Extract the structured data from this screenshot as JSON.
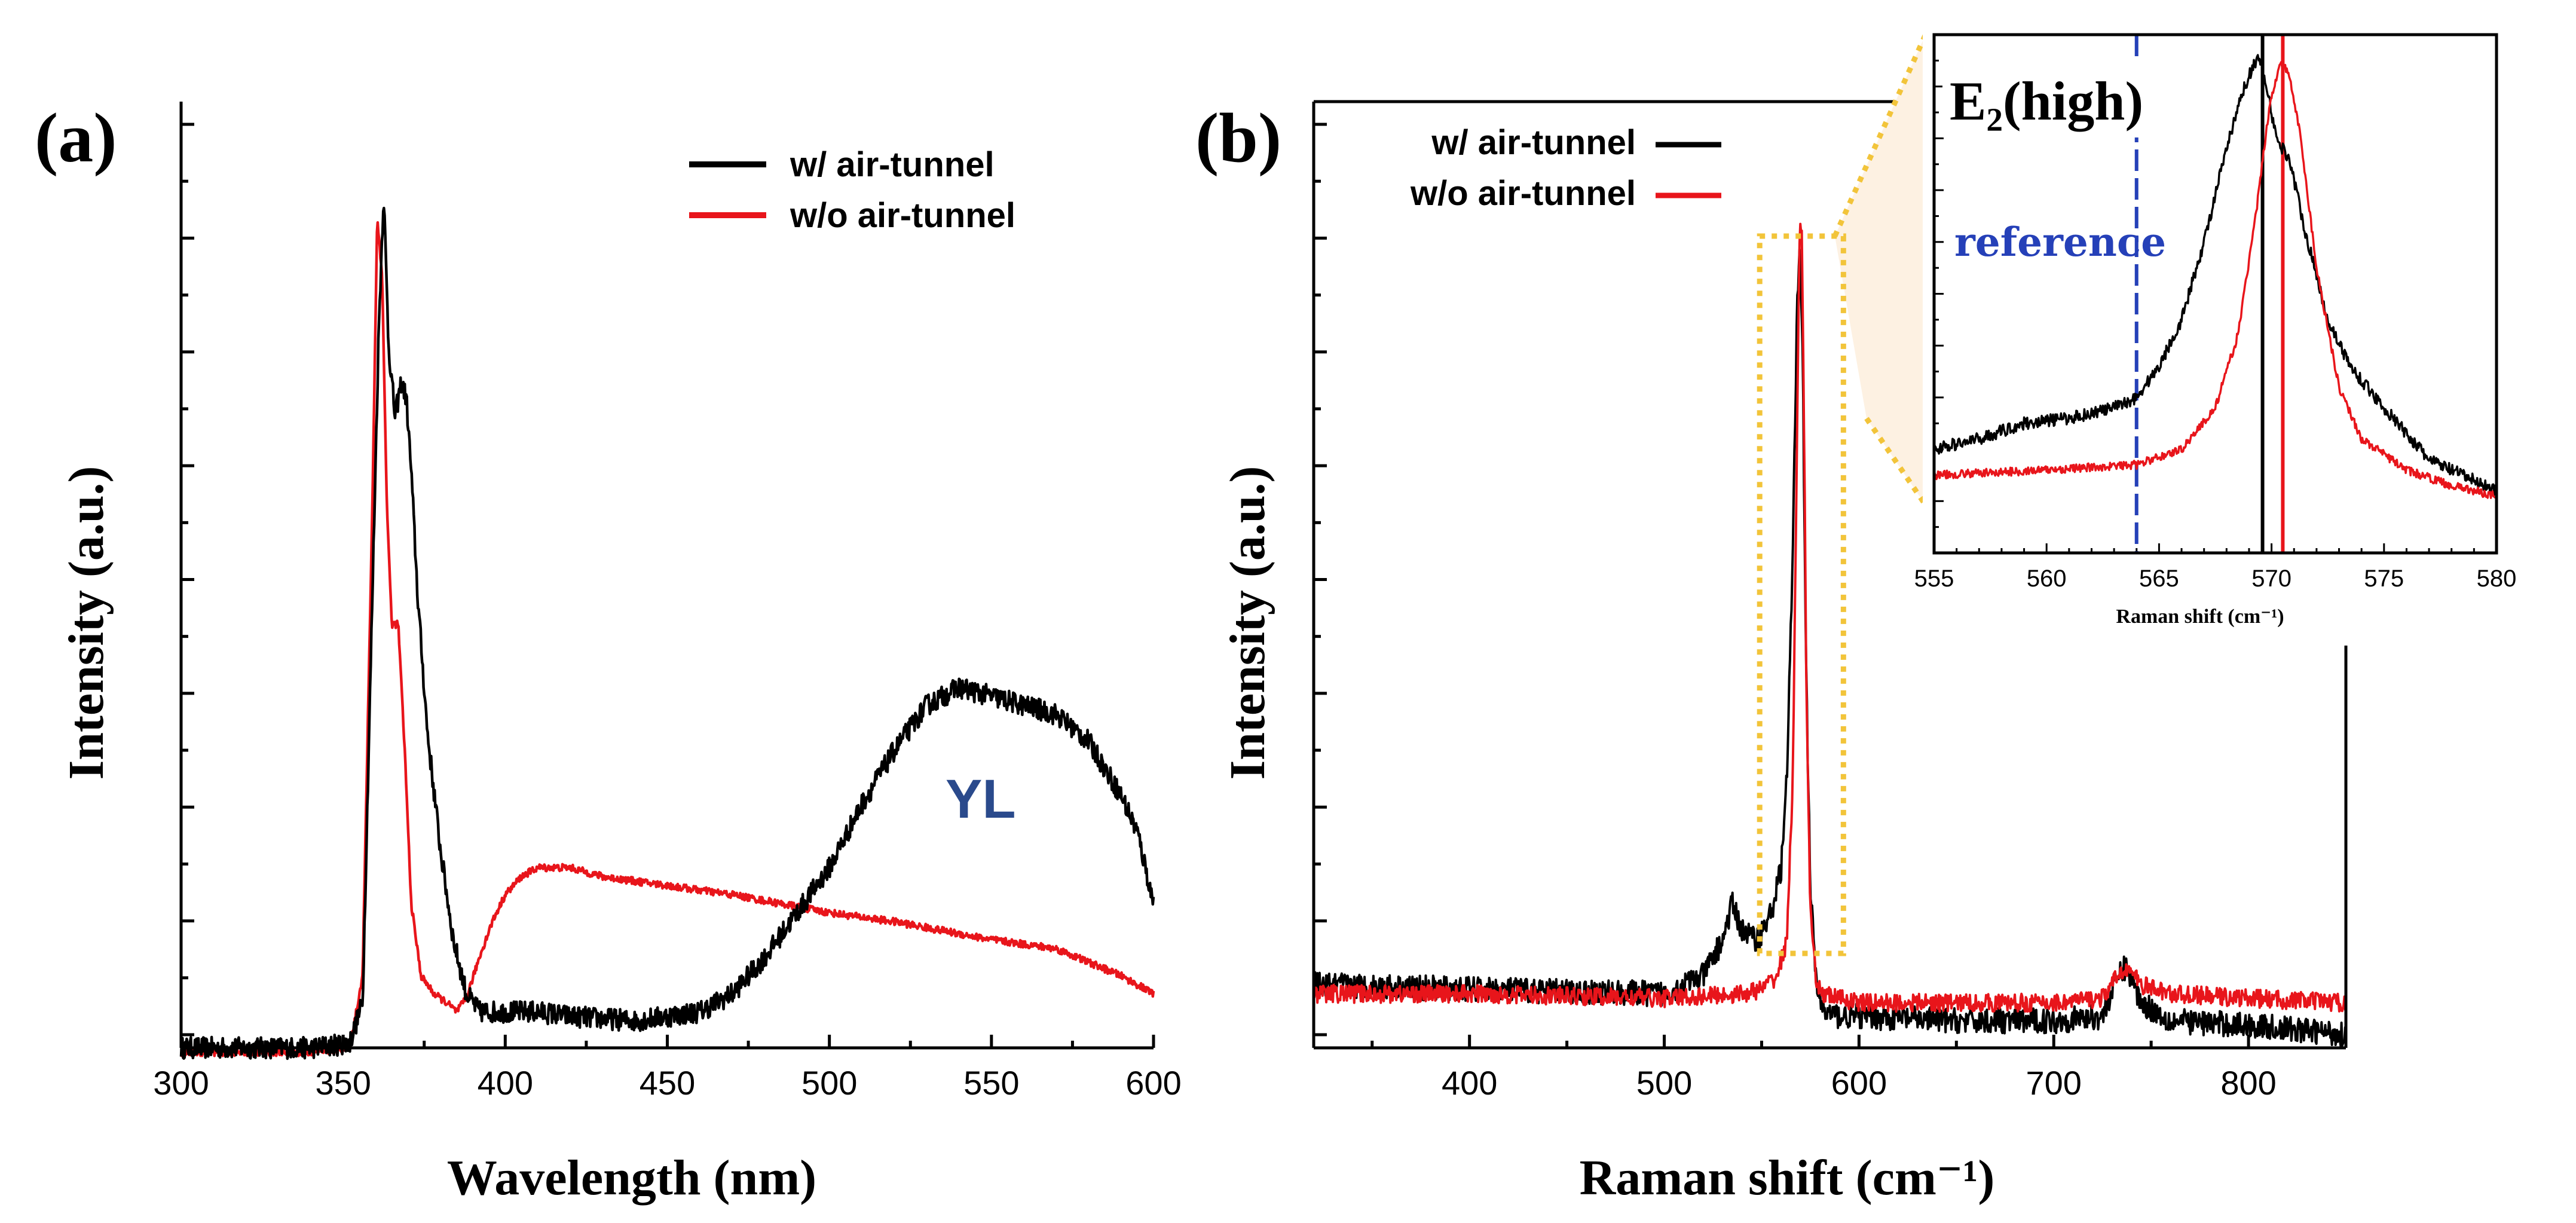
{
  "chart_data": [
    {
      "panel": "(a)",
      "type": "line",
      "xlabel": "Wavelength (nm)",
      "ylabel": "Intensity (a.u.)",
      "xlim": [
        300,
        600
      ],
      "ylim": [
        0,
        1.05
      ],
      "xticks": [
        300,
        350,
        400,
        450,
        500,
        550,
        600
      ],
      "xtick_labels": [
        "300",
        "350",
        "400",
        "450",
        "500",
        "550",
        "600"
      ],
      "yticks_count": 8,
      "legend": [
        "w/ air-tunnel",
        "w/o air-tunnel"
      ],
      "legend_position": "top-right",
      "annotation": "YL",
      "series": [
        {
          "name": "w/ air-tunnel",
          "color": "#000000",
          "x": [
            300,
            340,
            352,
            356,
            359,
            361,
            362.5,
            364,
            366,
            368,
            369.5,
            371,
            373,
            376,
            380,
            384,
            388,
            392,
            396,
            400,
            410,
            420,
            440,
            460,
            470,
            480,
            490,
            500,
            510,
            520,
            530,
            540,
            550,
            560,
            570,
            580,
            590,
            595,
            600
          ],
          "y": [
            0.0,
            0.0,
            0.005,
            0.05,
            0.5,
            0.8,
            0.95,
            0.78,
            0.7,
            0.74,
            0.72,
            0.64,
            0.5,
            0.35,
            0.22,
            0.12,
            0.06,
            0.04,
            0.04,
            0.04,
            0.04,
            0.035,
            0.03,
            0.04,
            0.06,
            0.1,
            0.15,
            0.2,
            0.27,
            0.33,
            0.38,
            0.4,
            0.39,
            0.38,
            0.37,
            0.34,
            0.28,
            0.24,
            0.16
          ],
          "noise": 0.012
        },
        {
          "name": "w/o air-tunnel",
          "color": "#e8151b",
          "x": [
            300,
            340,
            352,
            356,
            359,
            360.5,
            362,
            363.5,
            365,
            367,
            369,
            371,
            374,
            378,
            382,
            385,
            388,
            392,
            396,
            400,
            405,
            410,
            420,
            430,
            450,
            470,
            500,
            520,
            550,
            570,
            590,
            600
          ],
          "y": [
            -0.005,
            -0.005,
            0.0,
            0.08,
            0.6,
            0.92,
            0.86,
            0.6,
            0.47,
            0.47,
            0.33,
            0.16,
            0.08,
            0.06,
            0.05,
            0.04,
            0.055,
            0.1,
            0.14,
            0.17,
            0.19,
            0.2,
            0.2,
            0.19,
            0.18,
            0.17,
            0.15,
            0.14,
            0.12,
            0.11,
            0.08,
            0.06
          ],
          "noise": 0.004
        }
      ]
    },
    {
      "panel": "(b)",
      "type": "line",
      "xlabel": "Raman shift (cm⁻¹)",
      "ylabel": "Intensity (a.u.)",
      "xlim": [
        320,
        850
      ],
      "ylim": [
        0,
        1.05
      ],
      "xticks": [
        400,
        500,
        600,
        700,
        800
      ],
      "xtick_labels": [
        "400",
        "500",
        "600",
        "700",
        "800"
      ],
      "yticks_count": 8,
      "legend": [
        "w/ air-tunnel",
        "w/o air-tunnel"
      ],
      "legend_position": "top-left",
      "zoom_box_x_range": [
        549,
        592
      ],
      "series": [
        {
          "name": "w/ air-tunnel",
          "color": "#000000",
          "x": [
            320,
            400,
            500,
            520,
            530,
            535,
            540,
            548,
            555,
            560,
            563,
            566,
            568,
            569.5,
            571,
            573,
            575,
            578,
            582,
            590,
            600,
            650,
            700,
            725,
            733,
            737,
            745,
            760,
            800,
            850
          ],
          "y": [
            0.07,
            0.065,
            0.06,
            0.08,
            0.12,
            0.16,
            0.13,
            0.12,
            0.15,
            0.2,
            0.3,
            0.55,
            0.8,
            0.9,
            0.78,
            0.4,
            0.18,
            0.07,
            0.04,
            0.035,
            0.035,
            0.03,
            0.03,
            0.035,
            0.08,
            0.09,
            0.05,
            0.03,
            0.025,
            0.015
          ],
          "noise": 0.014
        },
        {
          "name": "w/o air-tunnel",
          "color": "#e8151b",
          "x": [
            320,
            400,
            500,
            540,
            550,
            558,
            563,
            566,
            568,
            569.5,
            570.5,
            571.5,
            573,
            575,
            578,
            582,
            590,
            600,
            700,
            725,
            733,
            737,
            745,
            760,
            800,
            850
          ],
          "y": [
            0.06,
            0.06,
            0.055,
            0.06,
            0.065,
            0.08,
            0.12,
            0.3,
            0.65,
            0.9,
            0.92,
            0.75,
            0.4,
            0.15,
            0.07,
            0.06,
            0.055,
            0.05,
            0.05,
            0.055,
            0.08,
            0.09,
            0.07,
            0.06,
            0.055,
            0.05
          ],
          "noise": 0.01
        }
      ]
    },
    {
      "panel": "(b) inset",
      "type": "line",
      "title": "E₂(high)",
      "xlabel": "Raman shift (cm⁻¹)",
      "ylabel": "",
      "xlim": [
        555,
        580
      ],
      "ylim": [
        0,
        1.0
      ],
      "xticks": [
        555,
        560,
        565,
        570,
        575,
        580
      ],
      "xtick_labels": [
        "555",
        "560",
        "565",
        "570",
        "575",
        "580"
      ],
      "annotation": "reference",
      "reference_line": {
        "x": 564,
        "color": "#2540b8",
        "style": "dashed"
      },
      "peak_lines": [
        {
          "x": 569.6,
          "color": "#000000"
        },
        {
          "x": 570.5,
          "color": "#e8151b"
        }
      ],
      "series": [
        {
          "name": "w/ air-tunnel",
          "color": "#000000",
          "x": [
            555,
            557,
            559,
            561,
            563,
            564,
            565,
            566,
            567,
            568,
            568.8,
            569.4,
            569.8,
            570.2,
            570.8,
            571.5,
            572.5,
            573.5,
            575,
            577,
            579,
            580
          ],
          "y": [
            0.2,
            0.22,
            0.25,
            0.26,
            0.28,
            0.3,
            0.36,
            0.45,
            0.6,
            0.78,
            0.9,
            0.96,
            0.9,
            0.8,
            0.76,
            0.62,
            0.45,
            0.36,
            0.28,
            0.18,
            0.14,
            0.12
          ],
          "noise": 0.012
        },
        {
          "name": "w/o air-tunnel",
          "color": "#e8151b",
          "x": [
            555,
            560,
            564,
            566,
            567.5,
            568.5,
            569.3,
            569.9,
            570.4,
            570.8,
            571.3,
            572,
            573,
            574,
            576,
            578,
            580
          ],
          "y": [
            0.15,
            0.16,
            0.17,
            0.2,
            0.28,
            0.42,
            0.65,
            0.86,
            0.95,
            0.92,
            0.8,
            0.55,
            0.32,
            0.22,
            0.16,
            0.13,
            0.11
          ],
          "noise": 0.008
        }
      ]
    }
  ]
}
